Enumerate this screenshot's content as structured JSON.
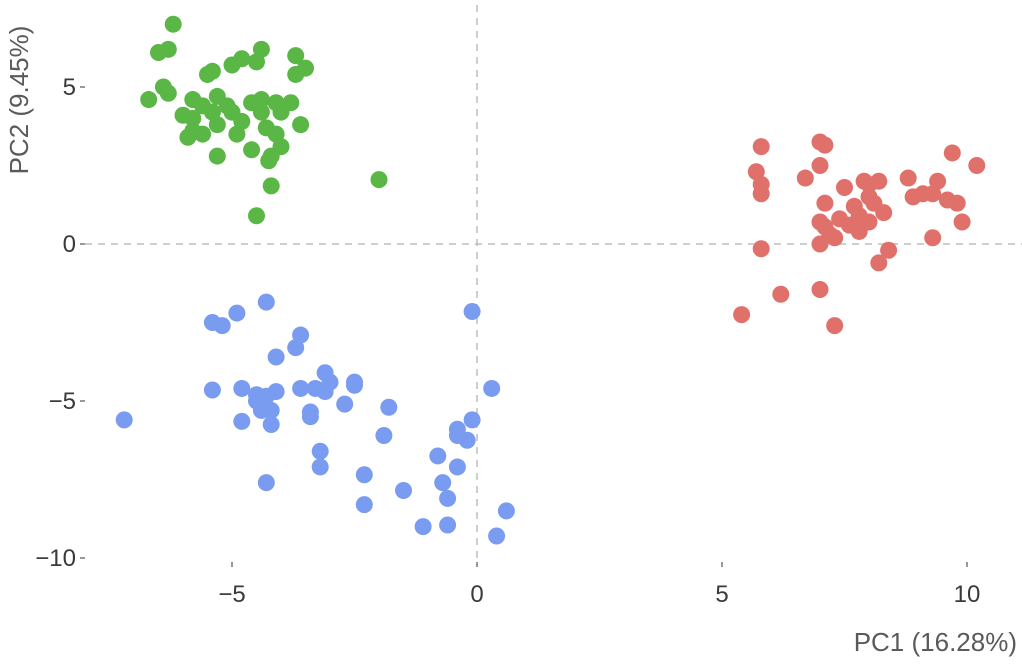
{
  "chart_data": {
    "type": "scatter",
    "title": "",
    "xlabel": "PC1 (16.28%)",
    "ylabel": "PC2 (9.45%)",
    "xlim": [
      -7.5,
      11
    ],
    "ylim": [
      -10.5,
      7.5
    ],
    "x_ticks": [
      -5,
      0,
      5,
      10
    ],
    "x_tick_labels": [
      "−5",
      "0",
      "5",
      "10"
    ],
    "y_ticks": [
      -10,
      -5,
      0,
      5
    ],
    "y_tick_labels": [
      "−10",
      "−5",
      "0",
      "5"
    ],
    "reference_lines": {
      "x": 0,
      "y": 0,
      "style": "dashed"
    },
    "grid": false,
    "legend": "none",
    "series": [
      {
        "color": "#e0716a",
        "points": [
          [
            7.0,
            3.25
          ],
          [
            7.1,
            3.15
          ],
          [
            5.8,
            3.1
          ],
          [
            5.7,
            2.3
          ],
          [
            7.0,
            2.5
          ],
          [
            6.7,
            2.1
          ],
          [
            5.8,
            1.9
          ],
          [
            5.8,
            1.6
          ],
          [
            7.5,
            1.8
          ],
          [
            8.0,
            1.9
          ],
          [
            8.2,
            2.0
          ],
          [
            8.8,
            2.1
          ],
          [
            9.7,
            2.9
          ],
          [
            10.2,
            2.5
          ],
          [
            9.4,
            2.0
          ],
          [
            9.1,
            1.6
          ],
          [
            9.3,
            1.6
          ],
          [
            9.6,
            1.4
          ],
          [
            9.8,
            1.3
          ],
          [
            8.9,
            1.5
          ],
          [
            7.1,
            1.3
          ],
          [
            7.7,
            1.2
          ],
          [
            8.1,
            1.3
          ],
          [
            8.3,
            1.0
          ],
          [
            7.0,
            0.7
          ],
          [
            7.4,
            0.8
          ],
          [
            7.8,
            0.9
          ],
          [
            8.0,
            0.7
          ],
          [
            7.2,
            0.3
          ],
          [
            7.3,
            0.2
          ],
          [
            7.0,
            0.0
          ],
          [
            7.6,
            0.6
          ],
          [
            7.1,
            0.55
          ],
          [
            9.9,
            0.7
          ],
          [
            9.3,
            0.2
          ],
          [
            8.4,
            -0.2
          ],
          [
            8.2,
            -0.6
          ],
          [
            5.8,
            -0.15
          ],
          [
            7.0,
            -1.45
          ],
          [
            6.2,
            -1.6
          ],
          [
            7.3,
            -2.6
          ],
          [
            5.4,
            -2.25
          ],
          [
            8.0,
            1.5
          ],
          [
            7.8,
            0.4
          ],
          [
            7.9,
            2.0
          ]
        ]
      },
      {
        "color": "#5ab645",
        "points": [
          [
            -6.2,
            7.0
          ],
          [
            -6.5,
            6.1
          ],
          [
            -6.3,
            6.2
          ],
          [
            -4.4,
            6.2
          ],
          [
            -4.8,
            5.9
          ],
          [
            -4.5,
            5.8
          ],
          [
            -3.7,
            6.0
          ],
          [
            -3.5,
            5.6
          ],
          [
            -3.7,
            5.4
          ],
          [
            -5.4,
            5.5
          ],
          [
            -5.5,
            5.4
          ],
          [
            -5.0,
            5.7
          ],
          [
            -6.4,
            5.0
          ],
          [
            -6.3,
            4.8
          ],
          [
            -6.7,
            4.6
          ],
          [
            -5.8,
            4.6
          ],
          [
            -5.3,
            4.7
          ],
          [
            -5.1,
            4.4
          ],
          [
            -4.6,
            4.5
          ],
          [
            -4.4,
            4.6
          ],
          [
            -4.1,
            4.5
          ],
          [
            -3.8,
            4.5
          ],
          [
            -5.6,
            4.4
          ],
          [
            -5.4,
            4.2
          ],
          [
            -5.0,
            4.2
          ],
          [
            -4.4,
            4.2
          ],
          [
            -4.0,
            4.2
          ],
          [
            -6.0,
            4.1
          ],
          [
            -5.8,
            4.0
          ],
          [
            -5.3,
            3.8
          ],
          [
            -4.8,
            3.9
          ],
          [
            -3.6,
            3.8
          ],
          [
            -4.3,
            3.7
          ],
          [
            -4.1,
            3.5
          ],
          [
            -5.8,
            3.6
          ],
          [
            -5.6,
            3.5
          ],
          [
            -4.9,
            3.5
          ],
          [
            -5.9,
            3.4
          ],
          [
            -4.0,
            3.1
          ],
          [
            -4.6,
            3.0
          ],
          [
            -4.2,
            2.8
          ],
          [
            -4.25,
            2.65
          ],
          [
            -5.3,
            2.8
          ],
          [
            -4.2,
            1.85
          ],
          [
            -2.0,
            2.05
          ],
          [
            -4.5,
            0.9
          ]
        ]
      },
      {
        "color": "#7a9cf0",
        "points": [
          [
            -0.1,
            -2.15
          ],
          [
            -4.3,
            -1.85
          ],
          [
            -4.9,
            -2.2
          ],
          [
            -5.4,
            -2.5
          ],
          [
            -5.2,
            -2.6
          ],
          [
            -3.6,
            -2.9
          ],
          [
            -3.7,
            -3.3
          ],
          [
            -4.1,
            -3.6
          ],
          [
            -3.1,
            -4.1
          ],
          [
            -3.0,
            -4.4
          ],
          [
            -2.5,
            -4.4
          ],
          [
            -2.5,
            -4.5
          ],
          [
            -5.4,
            -4.65
          ],
          [
            -4.8,
            -4.6
          ],
          [
            -4.5,
            -4.8
          ],
          [
            -4.1,
            -4.7
          ],
          [
            -3.6,
            -4.6
          ],
          [
            -3.3,
            -4.6
          ],
          [
            -3.1,
            -4.7
          ],
          [
            -4.3,
            -4.85
          ],
          [
            -4.5,
            -5.0
          ],
          [
            -4.4,
            -5.3
          ],
          [
            -4.2,
            -5.3
          ],
          [
            -3.4,
            -5.35
          ],
          [
            -2.7,
            -5.1
          ],
          [
            -1.8,
            -5.2
          ],
          [
            -3.4,
            -5.5
          ],
          [
            -4.2,
            -5.75
          ],
          [
            -4.8,
            -5.65
          ],
          [
            -7.2,
            -5.6
          ],
          [
            0.3,
            -4.6
          ],
          [
            -0.1,
            -5.6
          ],
          [
            -0.4,
            -5.9
          ],
          [
            -0.4,
            -6.1
          ],
          [
            -0.2,
            -6.25
          ],
          [
            -1.9,
            -6.1
          ],
          [
            -3.2,
            -6.6
          ],
          [
            -3.2,
            -7.1
          ],
          [
            -0.8,
            -6.75
          ],
          [
            -0.4,
            -7.1
          ],
          [
            -2.3,
            -7.35
          ],
          [
            -4.3,
            -7.6
          ],
          [
            -0.7,
            -7.6
          ],
          [
            -1.5,
            -7.85
          ],
          [
            -0.6,
            -8.1
          ],
          [
            -2.3,
            -8.3
          ],
          [
            0.6,
            -8.5
          ],
          [
            -1.1,
            -9.0
          ],
          [
            -0.6,
            -8.95
          ],
          [
            0.4,
            -9.3
          ]
        ]
      }
    ]
  }
}
